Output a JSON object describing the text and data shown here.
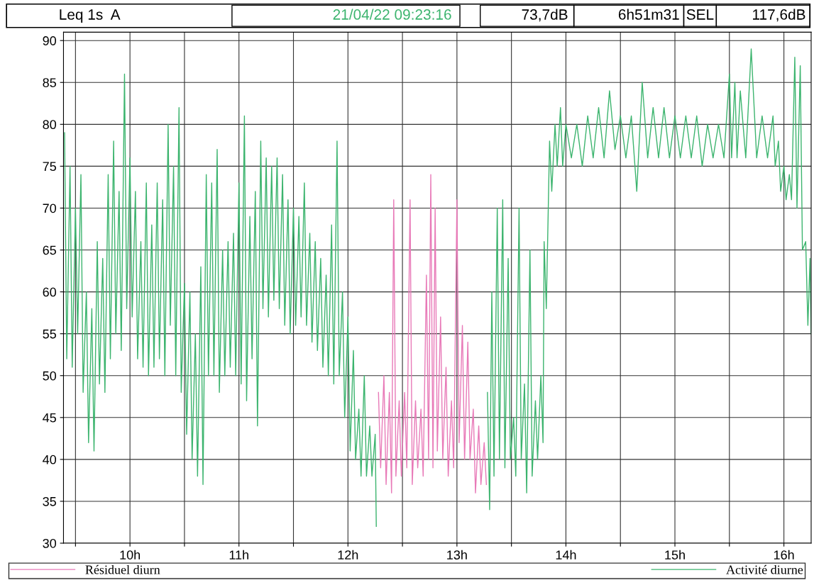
{
  "chart_data": {
    "type": "line",
    "annotations": [
      "Leq 1s  A",
      "21/04/22 09:23:16",
      "73,7dB",
      "6h51m31",
      "SEL",
      "117,6dB"
    ],
    "xlim": [
      9.39,
      16.25
    ],
    "xticks": [
      {
        "value": 9.5,
        "label": null
      },
      {
        "value": 10,
        "label": "10h"
      },
      {
        "value": 10.5,
        "label": null
      },
      {
        "value": 11,
        "label": "11h"
      },
      {
        "value": 11.5,
        "label": null
      },
      {
        "value": 12,
        "label": "12h"
      },
      {
        "value": 12.5,
        "label": null
      },
      {
        "value": 13,
        "label": "13h"
      },
      {
        "value": 13.5,
        "label": null
      },
      {
        "value": 14,
        "label": "14h"
      },
      {
        "value": 14.5,
        "label": null
      },
      {
        "value": 15,
        "label": "15h"
      },
      {
        "value": 15.5,
        "label": null
      },
      {
        "value": 16,
        "label": "16h"
      }
    ],
    "ylim": [
      30,
      91
    ],
    "yticks": [
      30,
      35,
      40,
      45,
      50,
      55,
      60,
      65,
      70,
      75,
      80,
      85,
      90
    ],
    "grid": true,
    "legend": "bottom left",
    "line_style": "solid",
    "series": [
      {
        "name": "Résiduel diurn",
        "color": "#e87ab8",
        "x": [
          12.28,
          12.3,
          12.33,
          12.35,
          12.38,
          12.4,
          12.42,
          12.44,
          12.47,
          12.49,
          12.52,
          12.54,
          12.57,
          12.59,
          12.62,
          12.64,
          12.67,
          12.69,
          12.72,
          12.74,
          12.76,
          12.78,
          12.8,
          12.82,
          12.85,
          12.87,
          12.9,
          12.92,
          12.95,
          12.97,
          13.0,
          13.02,
          13.05,
          13.07,
          13.1,
          13.12,
          13.15,
          13.17,
          13.2,
          13.22,
          13.25,
          13.27
        ],
        "values": [
          48,
          39,
          50,
          37,
          48,
          36,
          71,
          38,
          47,
          38,
          48,
          39,
          71,
          37,
          47,
          39,
          46,
          38,
          62,
          40,
          74,
          39,
          70,
          41,
          57,
          40,
          51,
          38,
          47,
          39,
          71,
          42,
          56,
          40,
          54,
          40,
          46,
          36,
          44,
          37,
          42,
          37
        ]
      },
      {
        "name": "Activité diurne",
        "color": "#3cb46e",
        "x": [
          9.4,
          9.42,
          9.45,
          9.47,
          9.5,
          9.52,
          9.55,
          9.57,
          9.6,
          9.62,
          9.65,
          9.67,
          9.7,
          9.72,
          9.75,
          9.77,
          9.8,
          9.82,
          9.85,
          9.87,
          9.9,
          9.92,
          9.95,
          9.97,
          10.0,
          10.02,
          10.05,
          10.07,
          10.1,
          10.12,
          10.15,
          10.17,
          10.2,
          10.22,
          10.25,
          10.27,
          10.3,
          10.32,
          10.35,
          10.37,
          10.4,
          10.42,
          10.45,
          10.47,
          10.5,
          10.52,
          10.55,
          10.57,
          10.6,
          10.62,
          10.65,
          10.67,
          10.7,
          10.72,
          10.75,
          10.77,
          10.8,
          10.82,
          10.85,
          10.87,
          10.9,
          10.92,
          10.95,
          10.97,
          11.0,
          11.02,
          11.05,
          11.07,
          11.1,
          11.12,
          11.15,
          11.17,
          11.2,
          11.22,
          11.25,
          11.27,
          11.3,
          11.32,
          11.35,
          11.37,
          11.4,
          11.42,
          11.45,
          11.47,
          11.5,
          11.52,
          11.55,
          11.57,
          11.6,
          11.62,
          11.65,
          11.67,
          11.7,
          11.72,
          11.75,
          11.77,
          11.8,
          11.82,
          11.85,
          11.87,
          11.9,
          11.92,
          11.95,
          11.97,
          12.0,
          12.02,
          12.05,
          12.07,
          12.1,
          12.12,
          12.15,
          12.17,
          12.2,
          12.22,
          12.25,
          12.26,
          12.27,
          13.28,
          13.3,
          13.32,
          13.34,
          13.37,
          13.39,
          13.42,
          13.44,
          13.47,
          13.49,
          13.52,
          13.54,
          13.57,
          13.59,
          13.62,
          13.64,
          13.67,
          13.69,
          13.72,
          13.74,
          13.77,
          13.79,
          13.8,
          13.82,
          13.85,
          13.87,
          13.9,
          13.92,
          13.95,
          13.97,
          14.0,
          14.05,
          14.1,
          14.15,
          14.2,
          14.25,
          14.3,
          14.35,
          14.4,
          14.45,
          14.5,
          14.55,
          14.6,
          14.65,
          14.7,
          14.75,
          14.8,
          14.85,
          14.9,
          14.95,
          15.0,
          15.05,
          15.1,
          15.15,
          15.2,
          15.25,
          15.3,
          15.35,
          15.4,
          15.45,
          15.5,
          15.52,
          15.55,
          15.57,
          15.6,
          15.65,
          15.7,
          15.75,
          15.8,
          15.85,
          15.9,
          15.92,
          15.95,
          15.97,
          16.0,
          16.02,
          16.05,
          16.07,
          16.1,
          16.12,
          16.15,
          16.17,
          16.2,
          16.22,
          16.24,
          16.25
        ],
        "values": [
          79,
          52,
          75,
          51,
          70,
          55,
          74,
          48,
          60,
          42,
          58,
          41,
          66,
          49,
          64,
          48,
          74,
          52,
          78,
          55,
          72,
          53,
          86,
          58,
          76,
          57,
          72,
          52,
          66,
          51,
          73,
          50,
          68,
          51,
          73,
          52,
          71,
          50,
          80,
          56,
          75,
          50,
          82,
          48,
          61,
          43,
          60,
          40,
          55,
          38,
          63,
          37,
          74,
          50,
          73,
          50,
          77,
          48,
          65,
          50,
          66,
          51,
          67,
          50,
          73,
          49,
          81,
          47,
          69,
          52,
          72,
          44,
          78,
          58,
          76,
          57,
          75,
          59,
          76,
          58,
          74,
          56,
          71,
          55,
          70,
          56,
          69,
          57,
          73,
          56,
          67,
          54,
          66,
          53,
          64,
          51,
          62,
          50,
          68,
          49,
          78,
          50,
          60,
          45,
          57,
          41,
          53,
          40,
          46,
          38,
          50,
          38,
          44,
          38,
          43,
          32,
          null,
          48,
          34,
          60,
          38,
          70,
          40,
          71,
          39,
          64,
          40,
          45,
          38,
          70,
          40,
          49,
          36,
          65,
          38,
          47,
          40,
          50,
          42,
          66,
          58,
          78,
          72,
          80,
          75,
          82,
          75,
          80,
          76,
          80,
          75,
          81,
          76,
          82,
          76,
          84,
          77,
          81,
          76,
          81,
          72,
          85,
          76,
          82,
          76,
          82,
          76,
          81,
          76,
          81,
          76,
          81,
          75,
          80,
          76,
          80,
          76,
          86,
          76,
          85,
          76,
          84,
          76,
          89,
          76,
          81,
          76,
          81,
          75,
          78,
          72,
          75,
          71,
          74,
          71,
          88,
          70,
          87,
          65,
          66,
          56,
          64,
          55
        ]
      }
    ]
  }
}
